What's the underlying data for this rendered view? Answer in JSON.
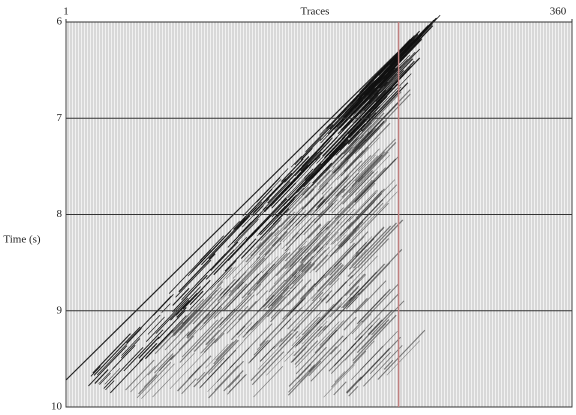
{
  "chart_data": {
    "type": "seismic",
    "xlabel": "Traces",
    "ylabel": "Time (s)",
    "xlim": [
      1,
      360
    ],
    "xticks": [
      1,
      360
    ],
    "ylim": [
      6,
      10
    ],
    "yticks": [
      6,
      7,
      8,
      9,
      10
    ],
    "highlight_trace": 237,
    "highlight_color": "#c08080",
    "grid": true
  }
}
